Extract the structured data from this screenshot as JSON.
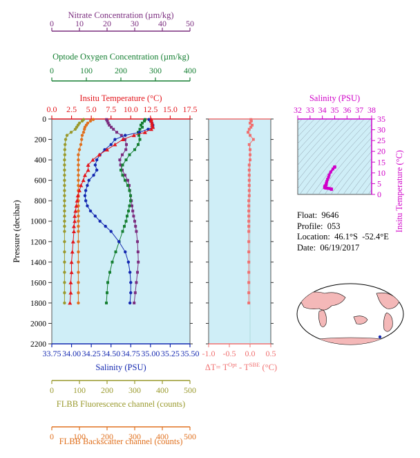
{
  "colors": {
    "nitrate": "#7b2d7f",
    "oxygen": "#157f32",
    "temperature": "#e3141b",
    "salinity": "#1428b0",
    "fluorescence": "#9a9a2e",
    "backscatter": "#e0701e",
    "delta_t": "#f07070",
    "ts_axis": "#d000c8",
    "plot_bg": "#cfeef7"
  },
  "info": {
    "float": "Float:  9646",
    "profile": "Profile:  053",
    "location": "Location:  46.1°S  -52.4°E",
    "date": "Date:  06/19/2017"
  },
  "chart_data": [
    {
      "type": "line",
      "name": "profile-panel",
      "y_axis": {
        "label": "Pressure (decibar)",
        "lim": [
          2200,
          0
        ],
        "ticks": [
          "0",
          "200",
          "400",
          "600",
          "800",
          "1000",
          "1200",
          "1400",
          "1600",
          "1800",
          "2000",
          "2200"
        ]
      },
      "axes": {
        "nitrate": {
          "label": "Nitrate Concentration (µm/kg)",
          "lim": [
            0,
            50
          ],
          "ticks": [
            "0",
            "10",
            "20",
            "30",
            "40",
            "50"
          ]
        },
        "oxygen": {
          "label": "Optode Oxygen Concentration (µm/kg)",
          "lim": [
            0,
            400
          ],
          "ticks": [
            "0",
            "100",
            "200",
            "300",
            "400"
          ]
        },
        "temperature": {
          "label": "Insitu Temperature (°C)",
          "lim": [
            0,
            17.5
          ],
          "ticks": [
            "0.0",
            "2.5",
            "5.0",
            "7.5",
            "10.0",
            "12.5",
            "15.0",
            "17.5"
          ]
        },
        "salinity": {
          "label": "Salinity (PSU)",
          "lim": [
            33.75,
            35.5
          ],
          "ticks": [
            "33.75",
            "34.00",
            "34.25",
            "34.50",
            "34.75",
            "35.00",
            "35.25",
            "35.50"
          ]
        },
        "fluorescence": {
          "label": "FLBB Fluorescence channel (counts)",
          "lim": [
            0,
            500
          ],
          "ticks": [
            "0",
            "100",
            "200",
            "300",
            "400",
            "500"
          ]
        },
        "backscatter": {
          "label": "FLBB Backscatter channel (counts)",
          "lim": [
            0,
            500
          ],
          "ticks": [
            "0",
            "100",
            "200",
            "300",
            "400",
            "500"
          ]
        }
      },
      "series": [
        {
          "name": "Insitu Temperature",
          "axis": "temperature",
          "marker": "triangle",
          "pressure": [
            5,
            20,
            40,
            60,
            80,
            100,
            130,
            160,
            200,
            250,
            300,
            350,
            400,
            450,
            500,
            550,
            600,
            650,
            700,
            750,
            800,
            850,
            900,
            950,
            1000,
            1050,
            1100,
            1200,
            1300,
            1400,
            1500,
            1600,
            1700,
            1800
          ],
          "values": [
            12.6,
            12.6,
            12.7,
            12.7,
            12.8,
            12.6,
            11.8,
            10.4,
            9.0,
            8.0,
            7.0,
            6.0,
            5.2,
            4.6,
            4.6,
            4.2,
            4.0,
            3.7,
            3.5,
            3.3,
            3.2,
            3.1,
            3.0,
            2.9,
            2.9,
            2.8,
            2.8,
            2.7,
            2.6,
            2.5,
            2.5,
            2.4,
            2.4,
            2.3
          ]
        },
        {
          "name": "Salinity",
          "axis": "salinity",
          "marker": "circle",
          "pressure": [
            5,
            20,
            40,
            60,
            80,
            100,
            130,
            160,
            200,
            250,
            300,
            350,
            400,
            450,
            500,
            550,
            600,
            650,
            700,
            750,
            800,
            850,
            900,
            950,
            1000,
            1050,
            1100,
            1200,
            1300,
            1400,
            1500,
            1600,
            1700,
            1800
          ],
          "values": [
            34.98,
            35.0,
            35.02,
            35.03,
            35.03,
            34.97,
            34.86,
            34.68,
            34.55,
            34.5,
            34.42,
            34.36,
            34.32,
            34.3,
            34.32,
            34.28,
            34.22,
            34.2,
            34.18,
            34.17,
            34.18,
            34.2,
            34.24,
            34.3,
            34.36,
            34.43,
            34.5,
            34.6,
            34.68,
            34.72,
            34.74,
            34.75,
            34.75,
            34.74
          ]
        },
        {
          "name": "Optode Oxygen",
          "axis": "oxygen",
          "marker": "square",
          "pressure": [
            5,
            20,
            40,
            60,
            80,
            100,
            130,
            160,
            200,
            250,
            300,
            350,
            400,
            450,
            500,
            550,
            600,
            650,
            700,
            750,
            800,
            850,
            900,
            950,
            1000,
            1050,
            1100,
            1200,
            1300,
            1400,
            1500,
            1600,
            1700,
            1800
          ],
          "values": [
            270,
            268,
            262,
            258,
            262,
            255,
            250,
            252,
            255,
            250,
            240,
            225,
            215,
            205,
            200,
            205,
            212,
            220,
            225,
            228,
            228,
            225,
            222,
            218,
            215,
            210,
            205,
            195,
            185,
            175,
            168,
            162,
            160,
            158
          ]
        },
        {
          "name": "Nitrate",
          "axis": "nitrate",
          "marker": "square",
          "pressure": [
            5,
            20,
            40,
            60,
            80,
            100,
            130,
            160,
            200,
            250,
            300,
            350,
            400,
            450,
            500,
            550,
            600,
            650,
            700,
            750,
            800,
            850,
            900,
            950,
            1000,
            1050,
            1100,
            1200,
            1300,
            1400,
            1500,
            1600,
            1700,
            1800
          ],
          "values": [
            19.8,
            20.1,
            20.4,
            20.8,
            21.5,
            22.3,
            23.5,
            25.2,
            26.5,
            27.0,
            26.8,
            25.5,
            24.6,
            24.9,
            25.5,
            26.5,
            27.5,
            28.0,
            28.2,
            28.5,
            28.8,
            29.0,
            29.3,
            29.6,
            30.0,
            30.3,
            30.6,
            31.0,
            31.2,
            31.3,
            31.0,
            30.6,
            30.2,
            29.8
          ]
        },
        {
          "name": "FLBB Fluorescence",
          "axis": "fluorescence",
          "marker": "circle",
          "pressure": [
            5,
            20,
            40,
            60,
            80,
            100,
            130,
            160,
            200,
            250,
            300,
            350,
            400,
            450,
            500,
            550,
            600,
            650,
            700,
            750,
            800,
            850,
            900,
            950,
            1000,
            1050,
            1100,
            1200,
            1300,
            1400,
            1500,
            1600,
            1700,
            1800
          ],
          "values": [
            115,
            110,
            100,
            95,
            90,
            85,
            70,
            55,
            50,
            48,
            47,
            47,
            46,
            46,
            46,
            46,
            46,
            46,
            46,
            46,
            46,
            46,
            46,
            46,
            46,
            46,
            46,
            46,
            46,
            46,
            46,
            46,
            46,
            46
          ]
        },
        {
          "name": "FLBB Backscatter",
          "axis": "backscatter",
          "marker": "circle",
          "pressure": [
            5,
            20,
            40,
            60,
            80,
            100,
            130,
            160,
            200,
            250,
            300,
            350,
            400,
            450,
            500,
            550,
            600,
            650,
            700,
            750,
            800,
            850,
            900,
            950,
            1000,
            1050,
            1100,
            1200,
            1300,
            1400,
            1500,
            1600,
            1700,
            1800
          ],
          "values": [
            150,
            140,
            130,
            125,
            120,
            118,
            115,
            110,
            108,
            105,
            100,
            96,
            96,
            96,
            96,
            96,
            96,
            96,
            96,
            96,
            96,
            96,
            96,
            96,
            96,
            96,
            96,
            96,
            96,
            96,
            96,
            96,
            96,
            96
          ]
        }
      ]
    },
    {
      "type": "scatter",
      "name": "delta-t-panel",
      "x_axis": {
        "label_main": "ΔT= T",
        "label_sup1": "Opt",
        "label_mid": " - T",
        "label_sup2": "SBE",
        "label_end": " (°C)",
        "lim": [
          -1.0,
          0.5
        ],
        "ticks": [
          "-1.0",
          "-0.5",
          "0.0",
          "0.5"
        ]
      },
      "y_lim": [
        2200,
        0
      ],
      "pressure": [
        5,
        20,
        40,
        60,
        80,
        100,
        130,
        160,
        200,
        250,
        300,
        350,
        400,
        450,
        500,
        550,
        600,
        650,
        700,
        750,
        800,
        850,
        900,
        950,
        1000,
        1050,
        1100,
        1200,
        1300,
        1400,
        1500,
        1600,
        1700,
        1800
      ],
      "values": [
        0.02,
        0.03,
        0.0,
        0.05,
        0.02,
        -0.02,
        -0.05,
        0.0,
        0.08,
        -0.02,
        0.0,
        0.0,
        0.0,
        -0.02,
        -0.02,
        -0.02,
        -0.02,
        -0.02,
        -0.02,
        -0.02,
        -0.03,
        -0.03,
        -0.03,
        -0.03,
        -0.03,
        -0.03,
        -0.03,
        -0.03,
        -0.03,
        -0.03,
        -0.03,
        -0.03,
        -0.03,
        -0.03
      ]
    },
    {
      "type": "scatter",
      "name": "ts-diagram",
      "x_axis": {
        "label": "Salinity (PSU)",
        "lim": [
          32,
          38
        ],
        "ticks": [
          "32",
          "33",
          "34",
          "35",
          "36",
          "37",
          "38"
        ]
      },
      "y_axis": {
        "label": "Insitu Temperature (°C)",
        "lim": [
          0,
          35
        ],
        "ticks": [
          "0",
          "5",
          "10",
          "15",
          "20",
          "25",
          "30",
          "35"
        ]
      },
      "salinity": [
        34.98,
        35.0,
        35.02,
        34.97,
        34.86,
        34.68,
        34.55,
        34.5,
        34.42,
        34.36,
        34.32,
        34.3,
        34.32,
        34.28,
        34.22,
        34.2,
        34.18,
        34.18,
        34.2,
        34.24,
        34.3,
        34.36,
        34.43,
        34.5,
        34.6,
        34.68,
        34.72,
        34.74,
        34.75,
        34.75,
        34.74
      ],
      "temperature": [
        12.6,
        12.7,
        12.8,
        12.6,
        11.8,
        10.4,
        9.0,
        8.0,
        7.0,
        6.0,
        5.2,
        4.6,
        4.6,
        4.2,
        4.0,
        3.7,
        3.5,
        3.2,
        3.1,
        3.0,
        2.9,
        2.9,
        2.8,
        2.8,
        2.7,
        2.6,
        2.5,
        2.5,
        2.4,
        2.4,
        2.3
      ]
    }
  ]
}
